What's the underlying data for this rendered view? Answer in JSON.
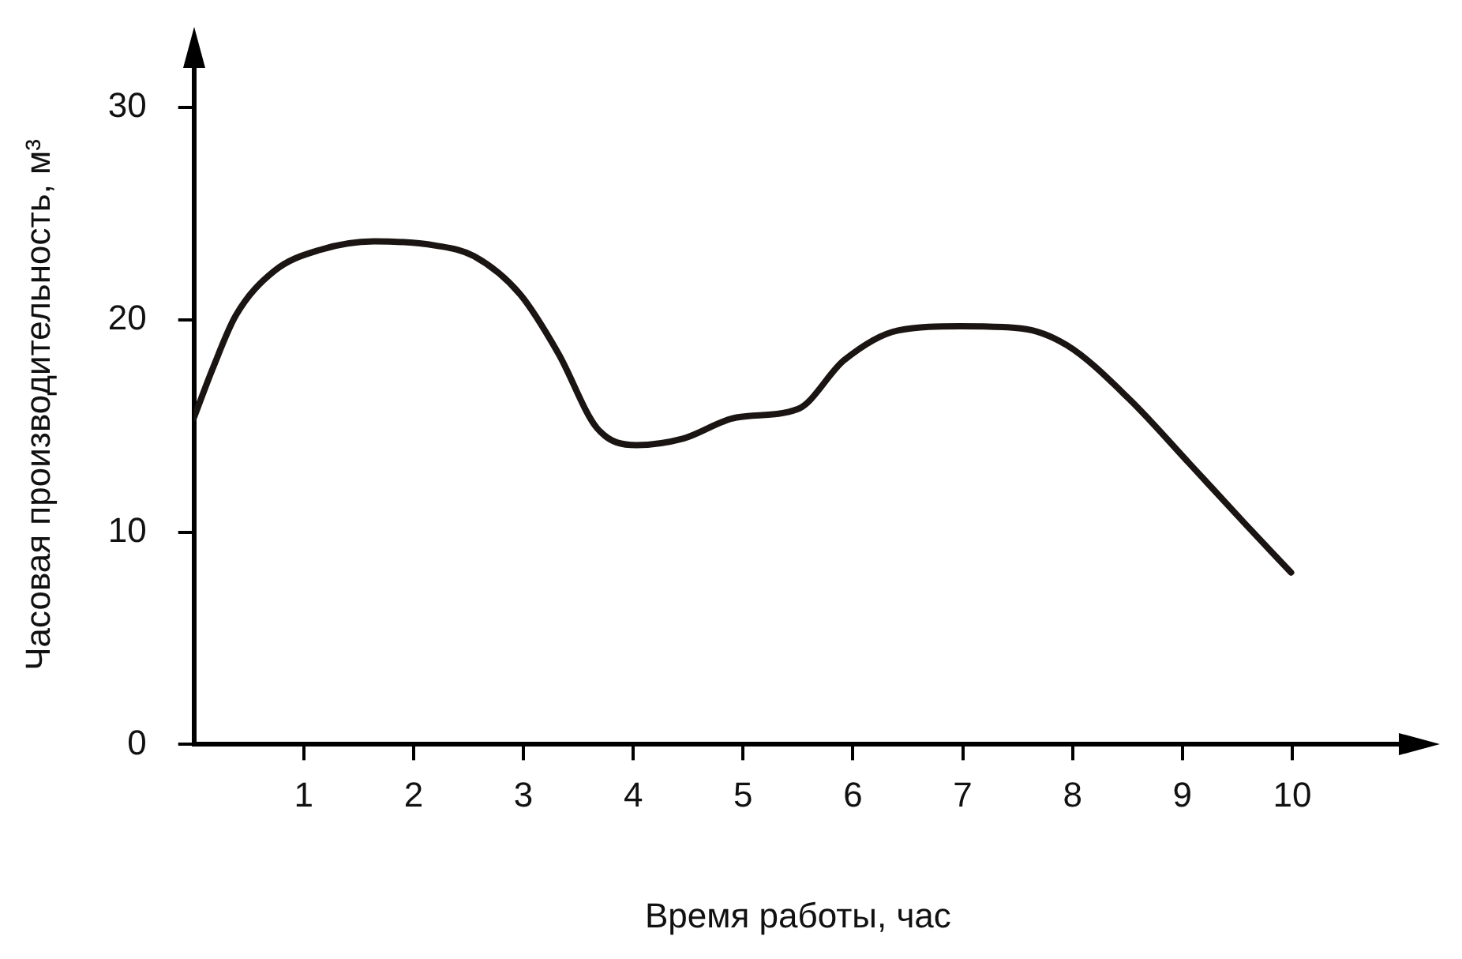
{
  "chart_data": {
    "type": "line",
    "xlabel": "Время работы, час",
    "ylabel": "Часовая производительность, м³",
    "x": [
      0,
      0.17,
      0.38,
      0.73,
      1.15,
      1.64,
      2.2,
      2.55,
      2.97,
      3.32,
      3.67,
      4.03,
      4.45,
      4.94,
      5.5,
      5.92,
      6.41,
      6.97,
      7.53,
      7.95,
      8.51,
      9.07,
      9.57,
      9.99
    ],
    "series": [
      {
        "color": "#1a1512",
        "values": [
          15.4,
          17.7,
          20.2,
          22.3,
          23.3,
          23.7,
          23.5,
          23.0,
          21.2,
          18.4,
          14.9,
          14.1,
          14.4,
          15.4,
          15.8,
          18.1,
          19.5,
          19.7,
          19.6,
          18.8,
          16.3,
          13.2,
          10.4,
          8.1
        ]
      }
    ],
    "xlim": [
      0,
      11
    ],
    "xticks": [
      1,
      2,
      3,
      4,
      5,
      6,
      7,
      8,
      9,
      10
    ],
    "ylim": [
      0,
      32
    ],
    "yticks": [
      0,
      10,
      20,
      30
    ],
    "grid": false,
    "legend": false,
    "marker": "none",
    "line_style": "solid"
  }
}
